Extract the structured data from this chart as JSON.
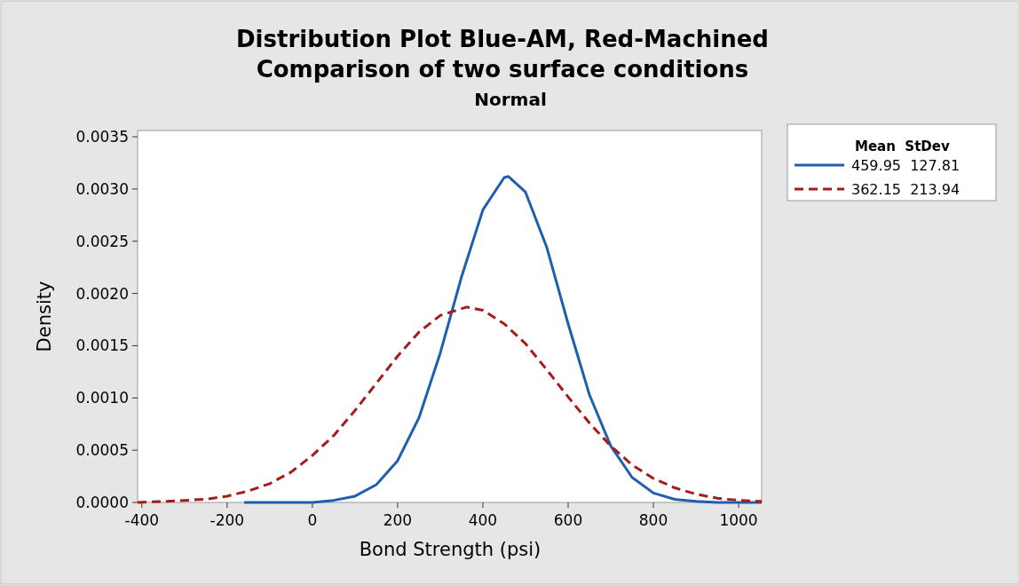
{
  "chart_data": {
    "type": "line",
    "title": "Distribution Plot Blue-AM, Red-Machined",
    "subtitle": "Comparison of two surface conditions",
    "annotations": [
      "Normal"
    ],
    "xlabel": "Bond Strength (psi)",
    "ylabel": "Density",
    "legend_title": "Mean  StDev",
    "legend": "right",
    "grid": false,
    "xlim": [
      -410,
      1054
    ],
    "xticks": [
      -400,
      -200,
      0,
      200,
      400,
      600,
      800,
      1000
    ],
    "ylim": [
      0,
      0.00356
    ],
    "yticks": [
      {
        "value": 0,
        "label": "0.0000"
      },
      {
        "value": 0.0005,
        "label": "0.0005"
      },
      {
        "value": 0.001,
        "label": "0.0010"
      },
      {
        "value": 0.0015,
        "label": "0.0015"
      },
      {
        "value": 0.002,
        "label": "0.0020"
      },
      {
        "value": 0.0025,
        "label": "0.0025"
      },
      {
        "value": 0.003,
        "label": "0.0030"
      },
      {
        "value": 0.0035,
        "label": "0.0035"
      }
    ],
    "series": [
      {
        "name": "459.95  127.81",
        "color": "#1f5fae",
        "line_style": "solid",
        "x": [
          -160,
          -100,
          0,
          50,
          100,
          150,
          200,
          250,
          300,
          350,
          400,
          450,
          460,
          500,
          550,
          600,
          650,
          700,
          750,
          800,
          850,
          900,
          950,
          1000,
          1054
        ],
        "values": [
          0,
          0,
          0,
          2e-05,
          6e-05,
          0.00017,
          0.0004,
          0.00081,
          0.00143,
          0.00216,
          0.0028,
          0.00311,
          0.00312,
          0.00297,
          0.00244,
          0.00171,
          0.00103,
          0.00054,
          0.00024,
          9e-05,
          3e-05,
          1e-05,
          0,
          0,
          0
        ]
      },
      {
        "name": "362.15  213.94",
        "color": "#a61c1c",
        "line_style": "dashed",
        "x": [
          -410,
          -350,
          -300,
          -250,
          -200,
          -150,
          -100,
          -50,
          0,
          50,
          100,
          150,
          200,
          250,
          300,
          362,
          400,
          450,
          500,
          550,
          600,
          650,
          700,
          750,
          800,
          850,
          900,
          950,
          1000,
          1054
        ],
        "values": [
          0,
          1e-05,
          2e-05,
          3e-05,
          6e-05,
          0.00011,
          0.00018,
          0.00029,
          0.00045,
          0.00064,
          0.00088,
          0.00114,
          0.0014,
          0.00163,
          0.00179,
          0.00187,
          0.00184,
          0.00171,
          0.00152,
          0.00127,
          0.00101,
          0.00076,
          0.00054,
          0.00036,
          0.00023,
          0.00014,
          8e-05,
          4e-05,
          2e-05,
          1e-05
        ]
      }
    ]
  }
}
